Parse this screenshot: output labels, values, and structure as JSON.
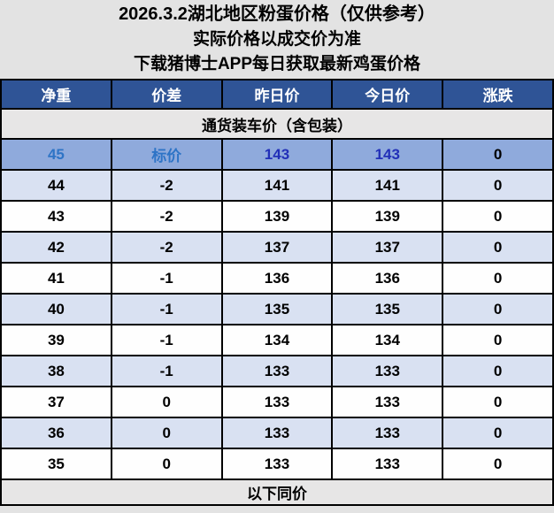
{
  "banner": {
    "line1": "2026.3.2湖北地区粉蛋价格（仅供参考）",
    "line2": "实际价格以成交价为准",
    "line3": "下载猪博士APP每日获取最新鸡蛋价格"
  },
  "table": {
    "headers": [
      "净重",
      "价差",
      "昨日价",
      "今日价",
      "涨跌"
    ],
    "section_label": "通货装车价（含包装）",
    "rows": [
      {
        "cells": [
          "45",
          "标价",
          "143",
          "143",
          "0"
        ],
        "highlight": true
      },
      {
        "cells": [
          "44",
          "-2",
          "141",
          "141",
          "0"
        ],
        "highlight": false
      },
      {
        "cells": [
          "43",
          "-2",
          "139",
          "139",
          "0"
        ],
        "highlight": false
      },
      {
        "cells": [
          "42",
          "-2",
          "137",
          "137",
          "0"
        ],
        "highlight": false
      },
      {
        "cells": [
          "41",
          "-1",
          "136",
          "136",
          "0"
        ],
        "highlight": false
      },
      {
        "cells": [
          "40",
          "-1",
          "135",
          "135",
          "0"
        ],
        "highlight": false
      },
      {
        "cells": [
          "39",
          "-1",
          "134",
          "134",
          "0"
        ],
        "highlight": false
      },
      {
        "cells": [
          "38",
          "-1",
          "133",
          "133",
          "0"
        ],
        "highlight": false
      },
      {
        "cells": [
          "37",
          "0",
          "133",
          "133",
          "0"
        ],
        "highlight": false
      },
      {
        "cells": [
          "36",
          "0",
          "133",
          "133",
          "0"
        ],
        "highlight": false
      },
      {
        "cells": [
          "35",
          "0",
          "133",
          "133",
          "0"
        ],
        "highlight": false
      }
    ],
    "footer_label": "以下同价"
  },
  "colors": {
    "banner_bg": "#e3e3e3",
    "header_bg": "#2f5496",
    "header_text": "#ffffff",
    "section_bg": "#e7e6e6",
    "highlight_row_bg": "#8faadc",
    "highlight_primary_text": "#2e74c6",
    "highlight_price_text": "#2230b8",
    "alt_row_bg": "#d9e1f2",
    "plain_row_bg": "#fefefe",
    "border": "#000000",
    "text": "#000000"
  }
}
